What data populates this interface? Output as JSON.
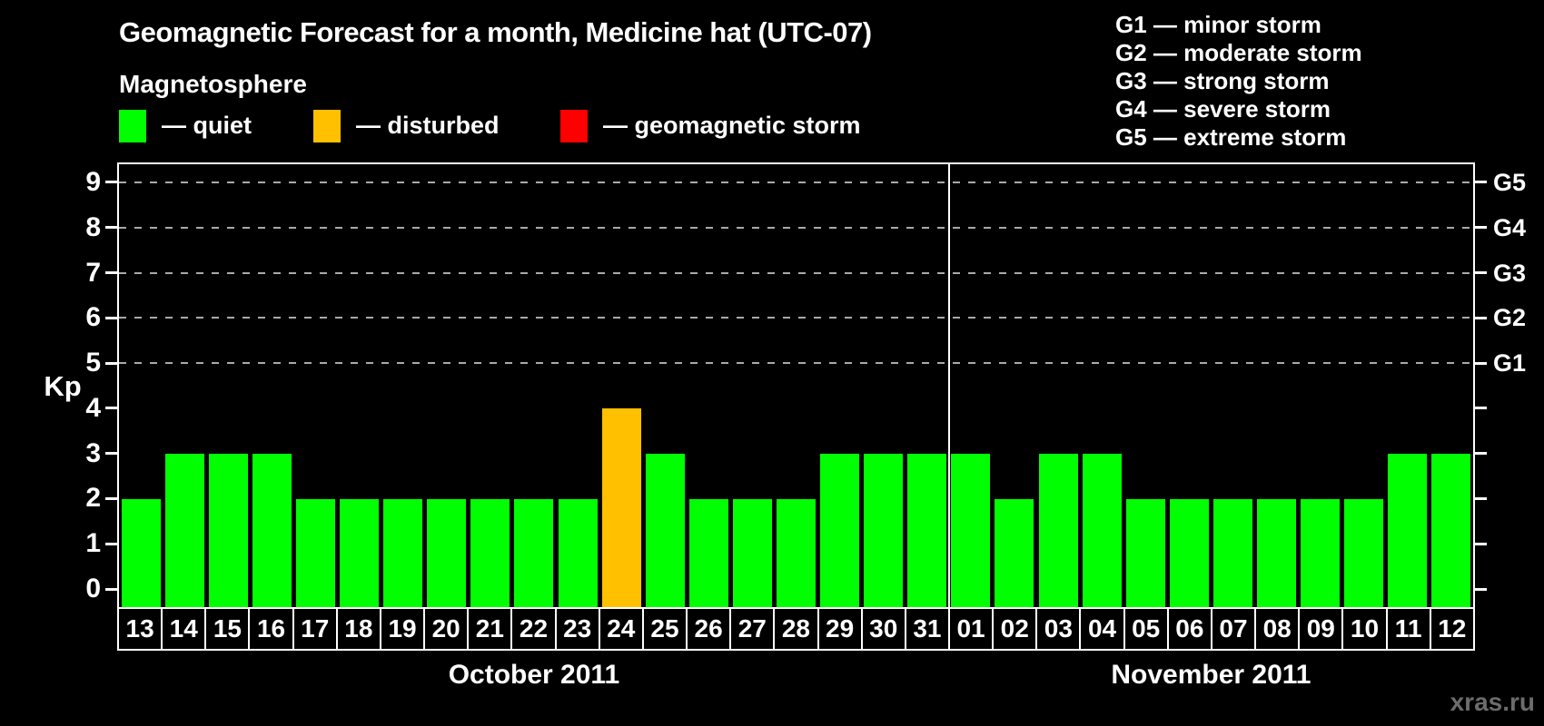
{
  "title": "Geomagnetic Forecast for a month, Medicine hat (UTC-07)",
  "subtitle": "Magnetosphere",
  "legend": {
    "items": [
      {
        "key": "quiet",
        "color": "#00ff00",
        "label": "— quiet"
      },
      {
        "key": "disturbed",
        "color": "#ffc000",
        "label": "— disturbed"
      },
      {
        "key": "storm",
        "color": "#ff0000",
        "label": "— geomagnetic storm"
      }
    ]
  },
  "g_legend": [
    "G1 — minor storm",
    "G2 — moderate storm",
    "G3 — strong storm",
    "G4 — severe storm",
    "G5 — extreme storm"
  ],
  "watermark": "xras.ru",
  "chart_data": {
    "type": "bar",
    "title": "Geomagnetic Forecast for a month, Medicine hat (UTC-07)",
    "ylabel": "Kp",
    "ylim": [
      -0.4,
      9.4
    ],
    "yticks": [
      0,
      1,
      2,
      3,
      4,
      5,
      6,
      7,
      8,
      9
    ],
    "grid_levels": [
      5,
      6,
      7,
      8,
      9
    ],
    "right_axis": [
      {
        "level": 5,
        "label": "G1"
      },
      {
        "level": 6,
        "label": "G2"
      },
      {
        "level": 7,
        "label": "G3"
      },
      {
        "level": 8,
        "label": "G4"
      },
      {
        "level": 9,
        "label": "G5"
      }
    ],
    "status_colors": {
      "quiet": "#00ff00",
      "disturbed": "#ffc000",
      "storm": "#ff0000"
    },
    "months": [
      {
        "label": "October 2011",
        "days": [
          {
            "day": "13",
            "kp": 2,
            "status": "quiet"
          },
          {
            "day": "14",
            "kp": 3,
            "status": "quiet"
          },
          {
            "day": "15",
            "kp": 3,
            "status": "quiet"
          },
          {
            "day": "16",
            "kp": 3,
            "status": "quiet"
          },
          {
            "day": "17",
            "kp": 2,
            "status": "quiet"
          },
          {
            "day": "18",
            "kp": 2,
            "status": "quiet"
          },
          {
            "day": "19",
            "kp": 2,
            "status": "quiet"
          },
          {
            "day": "20",
            "kp": 2,
            "status": "quiet"
          },
          {
            "day": "21",
            "kp": 2,
            "status": "quiet"
          },
          {
            "day": "22",
            "kp": 2,
            "status": "quiet"
          },
          {
            "day": "23",
            "kp": 2,
            "status": "quiet"
          },
          {
            "day": "24",
            "kp": 4,
            "status": "disturbed"
          },
          {
            "day": "25",
            "kp": 3,
            "status": "quiet"
          },
          {
            "day": "26",
            "kp": 2,
            "status": "quiet"
          },
          {
            "day": "27",
            "kp": 2,
            "status": "quiet"
          },
          {
            "day": "28",
            "kp": 2,
            "status": "quiet"
          },
          {
            "day": "29",
            "kp": 3,
            "status": "quiet"
          },
          {
            "day": "30",
            "kp": 3,
            "status": "quiet"
          },
          {
            "day": "31",
            "kp": 3,
            "status": "quiet"
          }
        ]
      },
      {
        "label": "November 2011",
        "days": [
          {
            "day": "01",
            "kp": 3,
            "status": "quiet"
          },
          {
            "day": "02",
            "kp": 2,
            "status": "quiet"
          },
          {
            "day": "03",
            "kp": 3,
            "status": "quiet"
          },
          {
            "day": "04",
            "kp": 3,
            "status": "quiet"
          },
          {
            "day": "05",
            "kp": 2,
            "status": "quiet"
          },
          {
            "day": "06",
            "kp": 2,
            "status": "quiet"
          },
          {
            "day": "07",
            "kp": 2,
            "status": "quiet"
          },
          {
            "day": "08",
            "kp": 2,
            "status": "quiet"
          },
          {
            "day": "09",
            "kp": 2,
            "status": "quiet"
          },
          {
            "day": "10",
            "kp": 2,
            "status": "quiet"
          },
          {
            "day": "11",
            "kp": 3,
            "status": "quiet"
          },
          {
            "day": "12",
            "kp": 3,
            "status": "quiet"
          }
        ]
      }
    ]
  }
}
